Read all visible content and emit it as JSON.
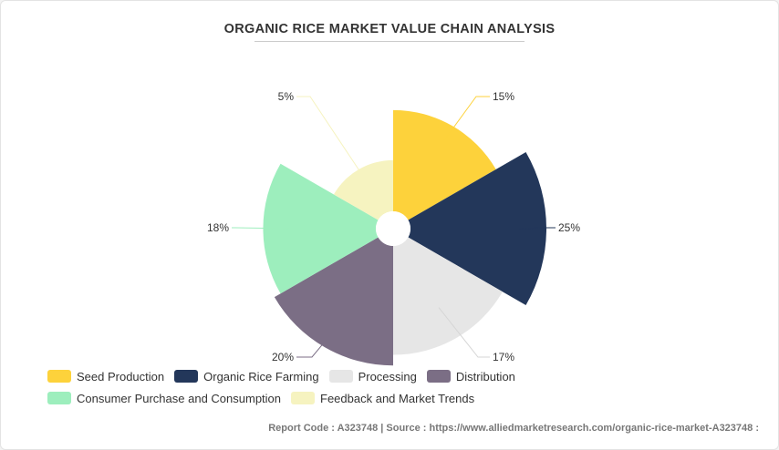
{
  "chart_data": {
    "type": "pie",
    "title": "ORGANIC RICE MARKET VALUE CHAIN ANALYSIS",
    "categories": [
      "Seed Production",
      "Organic Rice Farming",
      "Processing",
      "Distribution",
      "Consumer Purchase and Consumption",
      "Feedback and Market Trends"
    ],
    "values": [
      15,
      25,
      17,
      20,
      18,
      5
    ],
    "value_labels": [
      "15%",
      "25%",
      "17%",
      "20%",
      "18%",
      "5%"
    ],
    "colors": [
      "#fdd23b",
      "#23375a",
      "#e6e6e6",
      "#7b6e85",
      "#9deebd",
      "#f6f3c0"
    ],
    "legend_position": "bottom-left"
  },
  "footer": "Report Code : A323748  |  Source : https://www.alliedmarketresearch.com/organic-rice-market-A323748 :"
}
